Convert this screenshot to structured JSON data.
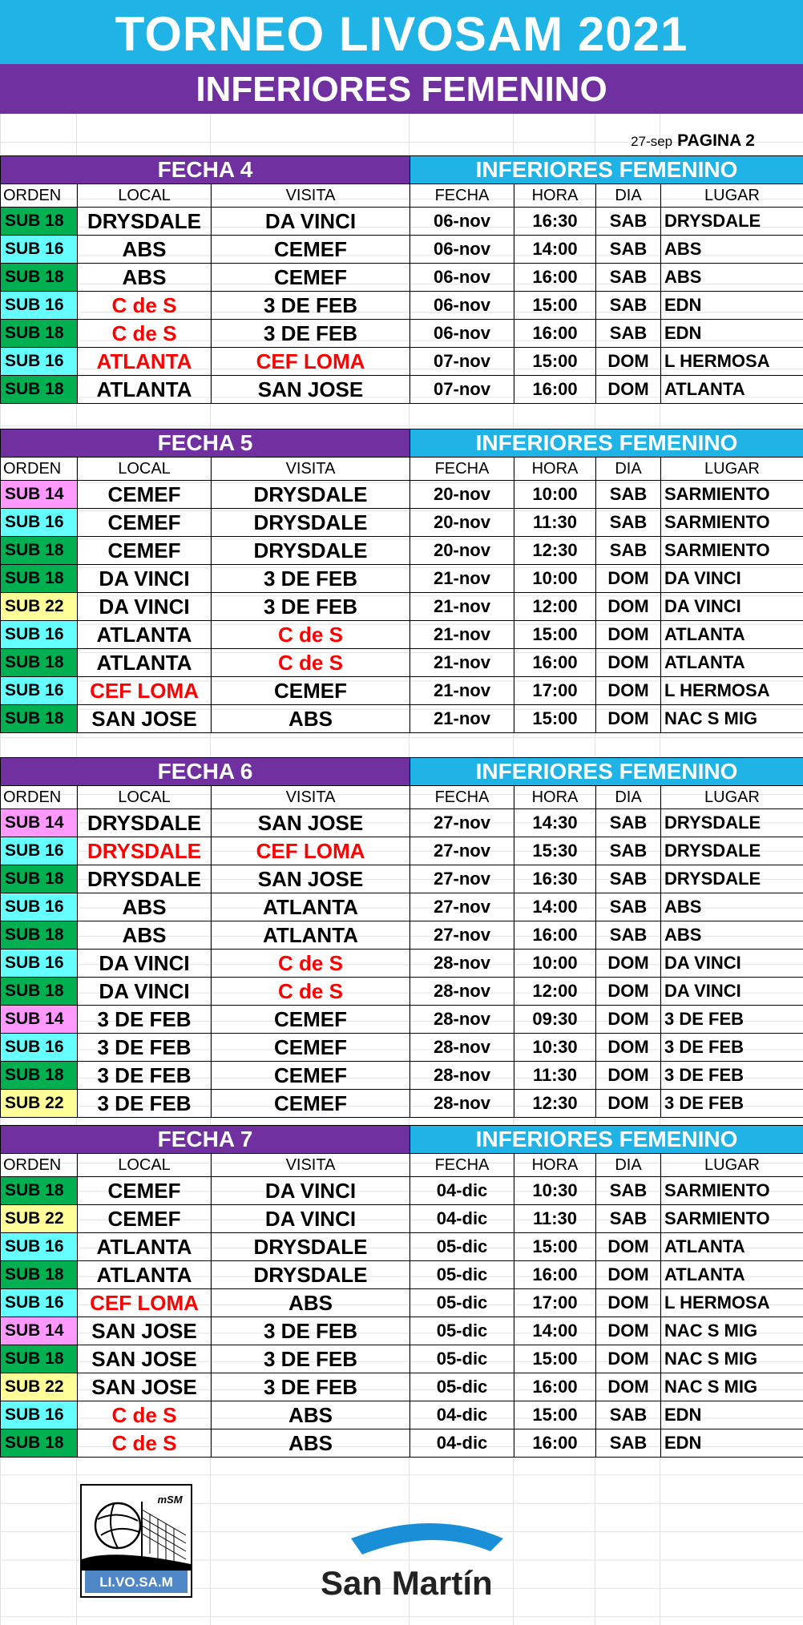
{
  "title": "TORNEO LIVOSAM 2021",
  "subtitle": "INFERIORES FEMENINO",
  "page_info": {
    "date": "27-sep",
    "page": "PAGINA 2"
  },
  "colors": {
    "sub14": "#ff99ff",
    "sub16": "#66ffff",
    "sub18": "#00b050",
    "sub22": "#ffff99",
    "purple": "#7030a0",
    "blue": "#1fb3e6",
    "red": "#ff0000"
  },
  "headers": [
    "ORDEN",
    "LOCAL",
    "VISITA",
    "FECHA",
    "HORA",
    "DIA",
    "LUGAR"
  ],
  "sections": [
    {
      "name": "FECHA 4",
      "right_title": "INFERIORES FEMENINO",
      "rows": [
        {
          "cat": "SUB 18",
          "local": "DRYSDALE",
          "visita": "DA VINCI",
          "fecha": "06-nov",
          "hora": "16:30",
          "dia": "SAB",
          "lugar": "DRYSDALE",
          "lr": false,
          "vr": false
        },
        {
          "cat": "SUB 16",
          "local": "ABS",
          "visita": "CEMEF",
          "fecha": "06-nov",
          "hora": "14:00",
          "dia": "SAB",
          "lugar": "ABS",
          "lr": false,
          "vr": false
        },
        {
          "cat": "SUB 18",
          "local": "ABS",
          "visita": "CEMEF",
          "fecha": "06-nov",
          "hora": "16:00",
          "dia": "SAB",
          "lugar": "ABS",
          "lr": false,
          "vr": false
        },
        {
          "cat": "SUB 16",
          "local": "C de S",
          "visita": "3 DE FEB",
          "fecha": "06-nov",
          "hora": "15:00",
          "dia": "SAB",
          "lugar": "EDN",
          "lr": true,
          "vr": false
        },
        {
          "cat": "SUB 18",
          "local": "C de S",
          "visita": "3 DE FEB",
          "fecha": "06-nov",
          "hora": "16:00",
          "dia": "SAB",
          "lugar": "EDN",
          "lr": true,
          "vr": false
        },
        {
          "cat": "SUB 16",
          "local": "ATLANTA",
          "visita": "CEF LOMA",
          "fecha": "07-nov",
          "hora": "15:00",
          "dia": "DOM",
          "lugar": "L HERMOSA",
          "lr": true,
          "vr": true
        },
        {
          "cat": "SUB 18",
          "local": "ATLANTA",
          "visita": "SAN JOSE",
          "fecha": "07-nov",
          "hora": "16:00",
          "dia": "DOM",
          "lugar": "ATLANTA",
          "lr": false,
          "vr": false
        }
      ]
    },
    {
      "name": "FECHA 5",
      "right_title": "INFERIORES FEMENINO",
      "rows": [
        {
          "cat": "SUB 14",
          "local": "CEMEF",
          "visita": "DRYSDALE",
          "fecha": "20-nov",
          "hora": "10:00",
          "dia": "SAB",
          "lugar": "SARMIENTO",
          "lr": false,
          "vr": false
        },
        {
          "cat": "SUB 16",
          "local": "CEMEF",
          "visita": "DRYSDALE",
          "fecha": "20-nov",
          "hora": "11:30",
          "dia": "SAB",
          "lugar": "SARMIENTO",
          "lr": false,
          "vr": false
        },
        {
          "cat": "SUB 18",
          "local": "CEMEF",
          "visita": "DRYSDALE",
          "fecha": "20-nov",
          "hora": "12:30",
          "dia": "SAB",
          "lugar": "SARMIENTO",
          "lr": false,
          "vr": false
        },
        {
          "cat": "SUB 18",
          "local": "DA VINCI",
          "visita": "3 DE FEB",
          "fecha": "21-nov",
          "hora": "10:00",
          "dia": "DOM",
          "lugar": "DA VINCI",
          "lr": false,
          "vr": false
        },
        {
          "cat": "SUB 22",
          "local": "DA VINCI",
          "visita": "3 DE FEB",
          "fecha": "21-nov",
          "hora": "12:00",
          "dia": "DOM",
          "lugar": "DA VINCI",
          "lr": false,
          "vr": false
        },
        {
          "cat": "SUB 16",
          "local": "ATLANTA",
          "visita": "C de S",
          "fecha": "21-nov",
          "hora": "15:00",
          "dia": "DOM",
          "lugar": "ATLANTA",
          "lr": false,
          "vr": true
        },
        {
          "cat": "SUB 18",
          "local": "ATLANTA",
          "visita": "C de S",
          "fecha": "21-nov",
          "hora": "16:00",
          "dia": "DOM",
          "lugar": "ATLANTA",
          "lr": false,
          "vr": true
        },
        {
          "cat": "SUB 16",
          "local": "CEF LOMA",
          "visita": "CEMEF",
          "fecha": "21-nov",
          "hora": "17:00",
          "dia": "DOM",
          "lugar": "L HERMOSA",
          "lr": true,
          "vr": false
        },
        {
          "cat": "SUB 18",
          "local": "SAN JOSE",
          "visita": "ABS",
          "fecha": "21-nov",
          "hora": "15:00",
          "dia": "DOM",
          "lugar": "NAC S MIG",
          "lr": false,
          "vr": false
        }
      ]
    },
    {
      "name": "FECHA 6",
      "right_title": "INFERIORES FEMENINO",
      "rows": [
        {
          "cat": "SUB 14",
          "local": "DRYSDALE",
          "visita": "SAN JOSE",
          "fecha": "27-nov",
          "hora": "14:30",
          "dia": "SAB",
          "lugar": "DRYSDALE",
          "lr": false,
          "vr": false
        },
        {
          "cat": "SUB 16",
          "local": "DRYSDALE",
          "visita": "CEF LOMA",
          "fecha": "27-nov",
          "hora": "15:30",
          "dia": "SAB",
          "lugar": "DRYSDALE",
          "lr": true,
          "vr": true
        },
        {
          "cat": "SUB 18",
          "local": "DRYSDALE",
          "visita": "SAN JOSE",
          "fecha": "27-nov",
          "hora": "16:30",
          "dia": "SAB",
          "lugar": "DRYSDALE",
          "lr": false,
          "vr": false
        },
        {
          "cat": "SUB 16",
          "local": "ABS",
          "visita": "ATLANTA",
          "fecha": "27-nov",
          "hora": "14:00",
          "dia": "SAB",
          "lugar": "ABS",
          "lr": false,
          "vr": false
        },
        {
          "cat": "SUB 18",
          "local": "ABS",
          "visita": "ATLANTA",
          "fecha": "27-nov",
          "hora": "16:00",
          "dia": "SAB",
          "lugar": "ABS",
          "lr": false,
          "vr": false
        },
        {
          "cat": "SUB 16",
          "local": "DA VINCI",
          "visita": "C de S",
          "fecha": "28-nov",
          "hora": "10:00",
          "dia": "DOM",
          "lugar": "DA VINCI",
          "lr": false,
          "vr": true
        },
        {
          "cat": "SUB 18",
          "local": "DA VINCI",
          "visita": "C de S",
          "fecha": "28-nov",
          "hora": "12:00",
          "dia": "DOM",
          "lugar": "DA VINCI",
          "lr": false,
          "vr": true
        },
        {
          "cat": "SUB 14",
          "local": "3 DE FEB",
          "visita": "CEMEF",
          "fecha": "28-nov",
          "hora": "09:30",
          "dia": "DOM",
          "lugar": "3 DE FEB",
          "lr": false,
          "vr": false
        },
        {
          "cat": "SUB 16",
          "local": "3 DE FEB",
          "visita": "CEMEF",
          "fecha": "28-nov",
          "hora": "10:30",
          "dia": "DOM",
          "lugar": "3 DE FEB",
          "lr": false,
          "vr": false
        },
        {
          "cat": "SUB 18",
          "local": "3 DE FEB",
          "visita": "CEMEF",
          "fecha": "28-nov",
          "hora": "11:30",
          "dia": "DOM",
          "lugar": "3 DE FEB",
          "lr": false,
          "vr": false
        },
        {
          "cat": "SUB 22",
          "local": "3 DE FEB",
          "visita": "CEMEF",
          "fecha": "28-nov",
          "hora": "12:30",
          "dia": "DOM",
          "lugar": "3 DE FEB",
          "lr": false,
          "vr": false
        }
      ]
    },
    {
      "name": "FECHA 7",
      "right_title": "INFERIORES FEMENINO",
      "rows": [
        {
          "cat": "SUB 18",
          "local": "CEMEF",
          "visita": "DA VINCI",
          "fecha": "04-dic",
          "hora": "10:30",
          "dia": "SAB",
          "lugar": "SARMIENTO",
          "lr": false,
          "vr": false
        },
        {
          "cat": "SUB 22",
          "local": "CEMEF",
          "visita": "DA VINCI",
          "fecha": "04-dic",
          "hora": "11:30",
          "dia": "SAB",
          "lugar": "SARMIENTO",
          "lr": false,
          "vr": false
        },
        {
          "cat": "SUB 16",
          "local": "ATLANTA",
          "visita": "DRYSDALE",
          "fecha": "05-dic",
          "hora": "15:00",
          "dia": "DOM",
          "lugar": "ATLANTA",
          "lr": false,
          "vr": false
        },
        {
          "cat": "SUB 18",
          "local": "ATLANTA",
          "visita": "DRYSDALE",
          "fecha": "05-dic",
          "hora": "16:00",
          "dia": "DOM",
          "lugar": "ATLANTA",
          "lr": false,
          "vr": false
        },
        {
          "cat": "SUB 16",
          "local": "CEF LOMA",
          "visita": "ABS",
          "fecha": "05-dic",
          "hora": "17:00",
          "dia": "DOM",
          "lugar": "L HERMOSA",
          "lr": true,
          "vr": false
        },
        {
          "cat": "SUB 14",
          "local": "SAN JOSE",
          "visita": "3 DE FEB",
          "fecha": "05-dic",
          "hora": "14:00",
          "dia": "DOM",
          "lugar": "NAC S MIG",
          "lr": false,
          "vr": false
        },
        {
          "cat": "SUB 18",
          "local": "SAN JOSE",
          "visita": "3 DE FEB",
          "fecha": "05-dic",
          "hora": "15:00",
          "dia": "DOM",
          "lugar": "NAC S MIG",
          "lr": false,
          "vr": false
        },
        {
          "cat": "SUB 22",
          "local": "SAN JOSE",
          "visita": "3 DE FEB",
          "fecha": "05-dic",
          "hora": "16:00",
          "dia": "DOM",
          "lugar": "NAC S MIG",
          "lr": false,
          "vr": false
        },
        {
          "cat": "SUB 16",
          "local": "C de S",
          "visita": "ABS",
          "fecha": "04-dic",
          "hora": "15:00",
          "dia": "SAB",
          "lugar": "EDN",
          "lr": true,
          "vr": false
        },
        {
          "cat": "SUB 18",
          "local": "C de S",
          "visita": "ABS",
          "fecha": "04-dic",
          "hora": "16:00",
          "dia": "SAB",
          "lugar": "EDN",
          "lr": true,
          "vr": false
        }
      ]
    }
  ],
  "logos": {
    "livosam_text": "LI.VO.SA.M",
    "livosam_mark": "mSM",
    "san_martin": "San Martín"
  }
}
